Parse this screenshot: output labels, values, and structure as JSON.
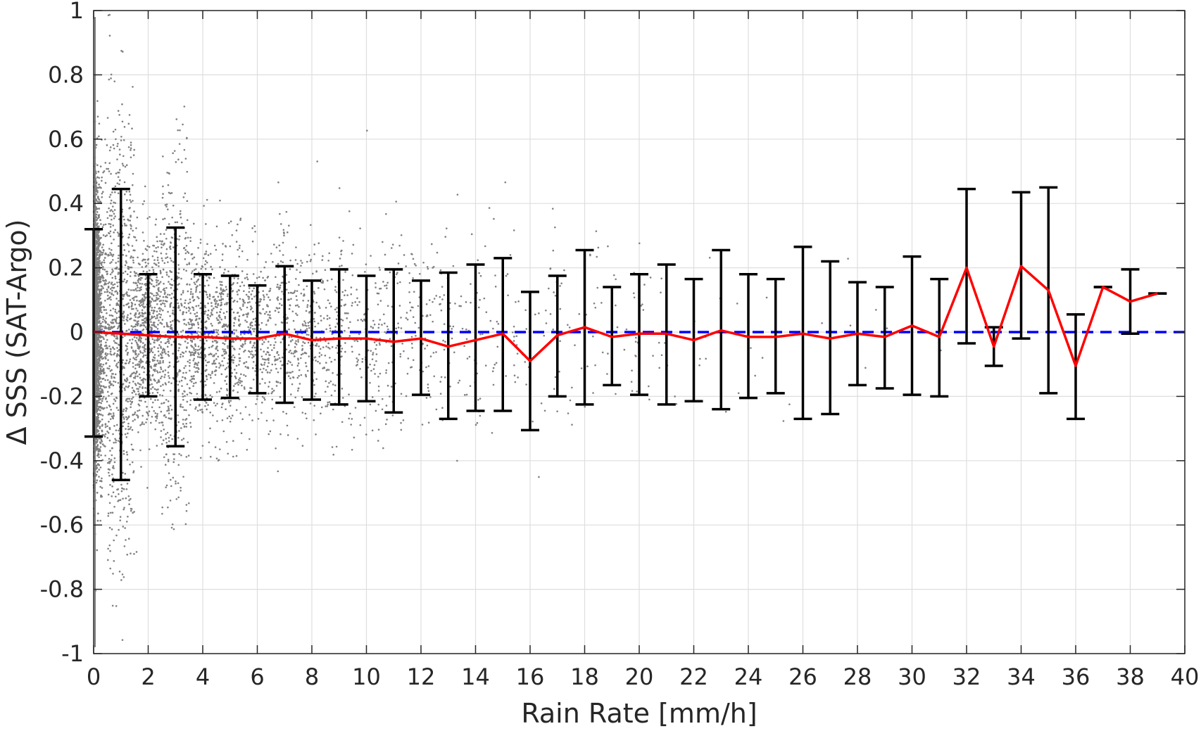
{
  "chart_data": {
    "type": "scatter",
    "title": "",
    "xlabel": "Rain Rate [mm/h]",
    "ylabel": "Δ SSS (SAT-Argo)",
    "xlim": [
      0,
      40
    ],
    "ylim": [
      -1,
      1
    ],
    "grid": true,
    "legend": "none",
    "xticks": [
      "0",
      "2",
      "4",
      "6",
      "8",
      "10",
      "12",
      "14",
      "16",
      "18",
      "20",
      "22",
      "24",
      "26",
      "28",
      "30",
      "32",
      "34",
      "36",
      "38",
      "40"
    ],
    "yticks": [
      "1",
      "0.8",
      "0.6",
      "0.4",
      "0.2",
      "0",
      "-0.2",
      "-0.4",
      "-0.6",
      "-0.8",
      "-1"
    ],
    "xtick_values": [
      0,
      2,
      4,
      6,
      8,
      10,
      12,
      14,
      16,
      18,
      20,
      22,
      24,
      26,
      28,
      30,
      32,
      34,
      36,
      38,
      40
    ],
    "ytick_values": [
      1,
      0.8,
      0.6,
      0.4,
      0.2,
      0,
      -0.2,
      -0.4,
      -0.6,
      -0.8,
      -1
    ],
    "reference_line": {
      "y": 0,
      "style": "dashed",
      "color": "#0000ff"
    },
    "bin_stats": {
      "x": [
        0,
        1,
        2,
        3,
        4,
        5,
        6,
        7,
        8,
        9,
        10,
        11,
        12,
        13,
        14,
        15,
        16,
        17,
        18,
        19,
        20,
        21,
        22,
        23,
        24,
        25,
        26,
        27,
        28,
        29,
        30,
        31,
        32,
        33,
        34,
        35,
        36,
        37,
        38,
        39
      ],
      "mean": [
        0.0,
        -0.005,
        -0.01,
        -0.015,
        -0.015,
        -0.02,
        -0.02,
        -0.005,
        -0.025,
        -0.02,
        -0.02,
        -0.03,
        -0.02,
        -0.045,
        -0.025,
        -0.005,
        -0.09,
        -0.01,
        0.015,
        -0.015,
        -0.005,
        -0.005,
        -0.025,
        0.005,
        -0.015,
        -0.015,
        -0.005,
        -0.02,
        -0.005,
        -0.015,
        0.02,
        -0.015,
        0.2,
        -0.045,
        0.205,
        0.13,
        -0.105,
        0.14,
        0.095,
        0.12
      ],
      "upper": [
        0.32,
        0.445,
        0.18,
        0.325,
        0.18,
        0.175,
        0.145,
        0.205,
        0.16,
        0.195,
        0.175,
        0.195,
        0.16,
        0.185,
        0.21,
        0.23,
        0.125,
        0.175,
        0.255,
        0.14,
        0.18,
        0.21,
        0.165,
        0.255,
        0.18,
        0.165,
        0.265,
        0.22,
        0.155,
        0.14,
        0.235,
        0.165,
        0.445,
        0.015,
        0.435,
        0.45,
        0.055,
        0.14,
        0.195,
        0.12
      ],
      "lower": [
        -0.325,
        -0.46,
        -0.2,
        -0.355,
        -0.21,
        -0.205,
        -0.19,
        -0.22,
        -0.21,
        -0.225,
        -0.215,
        -0.25,
        -0.195,
        -0.27,
        -0.245,
        -0.245,
        -0.305,
        -0.2,
        -0.225,
        -0.165,
        -0.195,
        -0.225,
        -0.215,
        -0.24,
        -0.205,
        -0.19,
        -0.27,
        -0.255,
        -0.165,
        -0.175,
        -0.195,
        -0.2,
        -0.035,
        -0.105,
        -0.02,
        -0.19,
        -0.27,
        0.14,
        -0.005,
        0.12
      ]
    },
    "series": [
      {
        "role": "individual collocations",
        "color": "#808080",
        "marker": "dot"
      },
      {
        "role": "binned mean",
        "color": "#ff0000",
        "marker": "line"
      },
      {
        "role": "binned spread",
        "color": "#000000",
        "marker": "errorbar"
      }
    ]
  }
}
